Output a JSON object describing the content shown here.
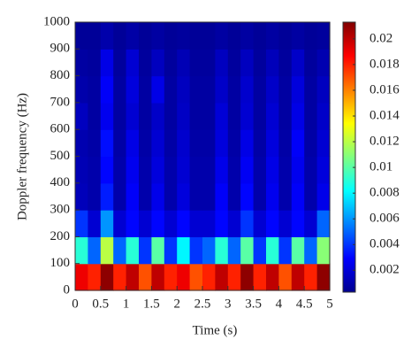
{
  "chart_data": {
    "type": "heatmap",
    "x_label": "Time (s)",
    "y_label": "Doppler frequency (Hz)",
    "xlim": [
      0,
      5
    ],
    "xticks": [
      0,
      0.5,
      1,
      1.5,
      2,
      2.5,
      3,
      3.5,
      4,
      4.5,
      5
    ],
    "ylim": [
      0,
      1000
    ],
    "yticks": [
      0,
      100,
      200,
      300,
      400,
      500,
      600,
      700,
      800,
      900,
      1000
    ],
    "clim": [
      0.0003,
      0.0213
    ],
    "cticks": [
      0.002,
      0.004,
      0.006,
      0.008,
      0.01,
      0.012,
      0.014,
      0.016,
      0.018,
      0.02
    ],
    "colormap": "jet",
    "z": [
      [
        0.019,
        0.018,
        0.021,
        0.018,
        0.02,
        0.017,
        0.02,
        0.018,
        0.019,
        0.017,
        0.018,
        0.02,
        0.018,
        0.021,
        0.018,
        0.02,
        0.017,
        0.02,
        0.018,
        0.021
      ],
      [
        0.009,
        0.005,
        0.012,
        0.005,
        0.009,
        0.004,
        0.01,
        0.004,
        0.008,
        0.004,
        0.005,
        0.009,
        0.005,
        0.01,
        0.004,
        0.009,
        0.004,
        0.01,
        0.005,
        0.011
      ],
      [
        0.004,
        0.002,
        0.006,
        0.002,
        0.003,
        0.002,
        0.003,
        0.002,
        0.003,
        0.002,
        0.002,
        0.003,
        0.002,
        0.004,
        0.002,
        0.003,
        0.002,
        0.003,
        0.002,
        0.005
      ],
      [
        0.0015,
        0.0012,
        0.0035,
        0.0012,
        0.0028,
        0.0012,
        0.0025,
        0.0012,
        0.0022,
        0.0012,
        0.0012,
        0.0028,
        0.0012,
        0.003,
        0.0012,
        0.0026,
        0.0012,
        0.0028,
        0.0012,
        0.0025
      ],
      [
        0.0014,
        0.0012,
        0.003,
        0.0012,
        0.0026,
        0.0012,
        0.0022,
        0.0012,
        0.002,
        0.0012,
        0.0012,
        0.0025,
        0.0012,
        0.0027,
        0.0012,
        0.0024,
        0.0012,
        0.0026,
        0.0012,
        0.0022
      ],
      [
        0.0013,
        0.0011,
        0.0032,
        0.0011,
        0.0024,
        0.0011,
        0.002,
        0.0011,
        0.0019,
        0.0011,
        0.0011,
        0.0022,
        0.0011,
        0.0024,
        0.0011,
        0.0022,
        0.0011,
        0.0028,
        0.0011,
        0.002
      ],
      [
        0.0016,
        0.001,
        0.0026,
        0.001,
        0.002,
        0.001,
        0.0018,
        0.001,
        0.0017,
        0.001,
        0.001,
        0.0021,
        0.001,
        0.002,
        0.001,
        0.002,
        0.001,
        0.0024,
        0.001,
        0.0018
      ],
      [
        0.0012,
        0.001,
        0.0028,
        0.001,
        0.0022,
        0.001,
        0.0024,
        0.001,
        0.0016,
        0.001,
        0.001,
        0.0018,
        0.001,
        0.0019,
        0.001,
        0.0018,
        0.001,
        0.0022,
        0.001,
        0.0016
      ],
      [
        0.001,
        0.0009,
        0.0024,
        0.0009,
        0.002,
        0.0009,
        0.0016,
        0.0009,
        0.0014,
        0.0009,
        0.0009,
        0.0016,
        0.0009,
        0.0016,
        0.0009,
        0.0015,
        0.0009,
        0.0018,
        0.0009,
        0.0013
      ],
      [
        0.0008,
        0.0008,
        0.0012,
        0.0008,
        0.0011,
        0.0008,
        0.001,
        0.0008,
        0.0009,
        0.0008,
        0.0008,
        0.001,
        0.0008,
        0.001,
        0.0008,
        0.001,
        0.0008,
        0.001,
        0.0008,
        0.0009
      ]
    ]
  }
}
